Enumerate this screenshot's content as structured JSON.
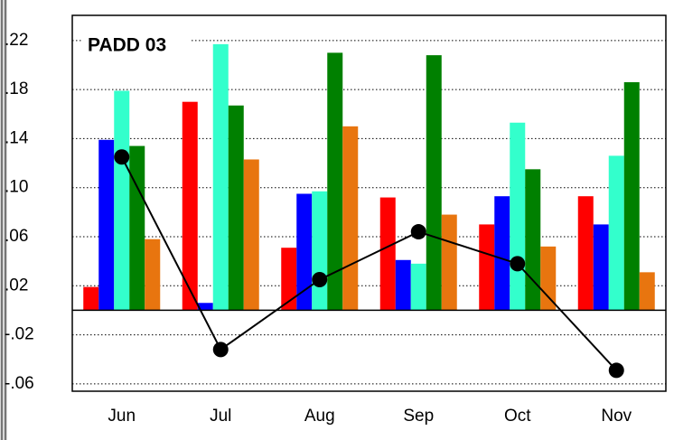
{
  "chart_data": {
    "type": "bar",
    "title": "PADD 03",
    "categories": [
      "Jun",
      "Jul",
      "Aug",
      "Sep",
      "Oct",
      "Nov"
    ],
    "series": [
      {
        "color": "#ff0000",
        "values": [
          0.019,
          0.17,
          0.051,
          0.092,
          0.07,
          0.093
        ]
      },
      {
        "color": "#0000ff",
        "values": [
          0.139,
          0.006,
          0.095,
          0.041,
          0.093,
          0.07
        ]
      },
      {
        "color": "#33ffcc",
        "values": [
          0.179,
          0.217,
          0.097,
          0.038,
          0.153,
          0.126
        ]
      },
      {
        "color": "#008000",
        "values": [
          0.134,
          0.167,
          0.21,
          0.208,
          0.115,
          0.186
        ]
      },
      {
        "color": "#e8750f",
        "values": [
          0.058,
          0.123,
          0.15,
          0.078,
          0.052,
          0.031
        ]
      },
      {
        "type": "line",
        "color": "#000000",
        "values": [
          0.125,
          -0.032,
          0.025,
          0.064,
          0.038,
          -0.049
        ]
      }
    ],
    "ylim": [
      -0.066,
      0.2405
    ],
    "yticks": [
      {
        "value": 0.22,
        "label": ".22"
      },
      {
        "value": 0.18,
        "label": ".18"
      },
      {
        "value": 0.14,
        "label": ".14"
      },
      {
        "value": 0.1,
        "label": ".10"
      },
      {
        "value": 0.06,
        "label": ".06"
      },
      {
        "value": 0.02,
        "label": ".02"
      },
      {
        "value": -0.02,
        "label": "-.02"
      },
      {
        "value": -0.06,
        "label": "-.06"
      }
    ],
    "grid": true
  }
}
